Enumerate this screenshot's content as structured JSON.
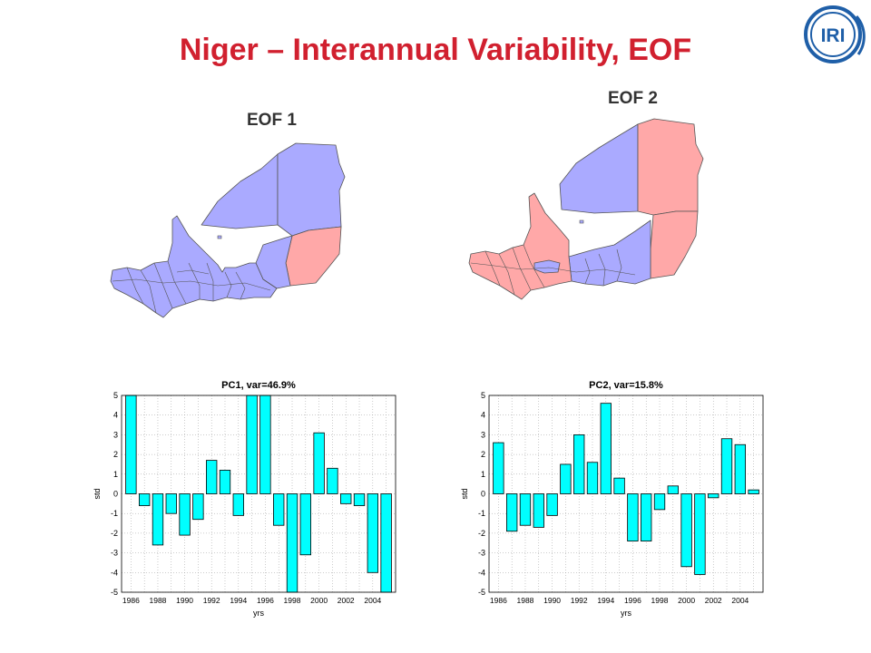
{
  "slide": {
    "title": "Niger – Interannual Variability, EOF",
    "logo_text": "IRI"
  },
  "maps": {
    "eof1_label": "EOF 1",
    "eof2_label": "EOF 2",
    "colors": {
      "positive": "#ffa8a8",
      "negative": "#aaaaff",
      "border": "#555555"
    }
  },
  "chart_data": [
    {
      "type": "bar",
      "title": "PC1, var=46.9%",
      "xlabel": "yrs",
      "ylabel": "std",
      "ylim": [
        -5,
        5
      ],
      "yticks": [
        -5,
        -4,
        -3,
        -2,
        -1,
        0,
        1,
        2,
        3,
        4,
        5
      ],
      "xtick_labels": [
        "1986",
        "1988",
        "1990",
        "1992",
        "1994",
        "1996",
        "1998",
        "2000",
        "2002",
        "2004"
      ],
      "x": [
        1986,
        1987,
        1988,
        1989,
        1990,
        1991,
        1992,
        1993,
        1994,
        1995,
        1996,
        1997,
        1998,
        1999,
        2000,
        2001,
        2002,
        2003,
        2004,
        2005
      ],
      "values": [
        5.0,
        -0.6,
        -2.6,
        -1.0,
        -2.1,
        -1.3,
        1.7,
        1.2,
        -1.1,
        5.0,
        5.0,
        -1.6,
        -5.0,
        -3.1,
        3.1,
        1.3,
        -0.5,
        -0.6,
        -4.0,
        -5.0
      ],
      "bar_color": "#00ffff",
      "grid": true
    },
    {
      "type": "bar",
      "title": "PC2, var=15.8%",
      "xlabel": "yrs",
      "ylabel": "std",
      "ylim": [
        -5,
        5
      ],
      "yticks": [
        -5,
        -4,
        -3,
        -2,
        -1,
        0,
        1,
        2,
        3,
        4,
        5
      ],
      "xtick_labels": [
        "1986",
        "1988",
        "1990",
        "1992",
        "1994",
        "1996",
        "1998",
        "2000",
        "2002",
        "2004"
      ],
      "x": [
        1986,
        1987,
        1988,
        1989,
        1990,
        1991,
        1992,
        1993,
        1994,
        1995,
        1996,
        1997,
        1998,
        1999,
        2000,
        2001,
        2002,
        2003,
        2004,
        2005
      ],
      "values": [
        2.6,
        -1.9,
        -1.6,
        -1.7,
        -1.1,
        1.5,
        3.0,
        1.6,
        4.6,
        0.8,
        -2.4,
        -2.4,
        -0.8,
        0.4,
        -3.7,
        -4.1,
        -0.2,
        2.8,
        2.5,
        0.2
      ],
      "bar_color": "#00ffff",
      "grid": true
    }
  ]
}
